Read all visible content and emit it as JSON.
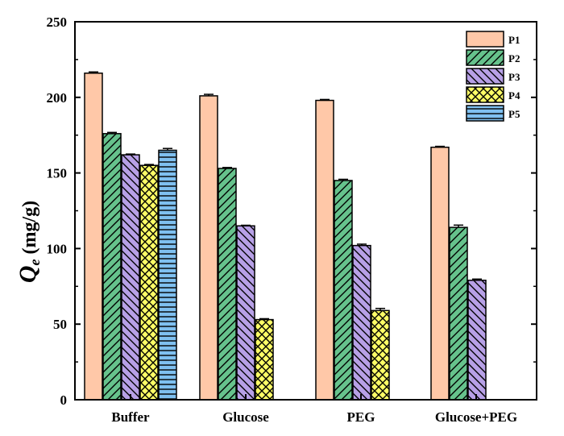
{
  "chart_data": {
    "type": "bar",
    "title": "",
    "xlabel": "",
    "ylabel": {
      "symbol": "Q",
      "subscript": "e",
      "unit": " (mg/g)"
    },
    "ylim": [
      0,
      250
    ],
    "yticks": [
      0,
      50,
      100,
      150,
      200,
      250
    ],
    "categories": [
      "Buffer",
      "Glucose",
      "PEG",
      "Glucose+PEG"
    ],
    "legend_position": "top-right",
    "series": [
      {
        "name": "P1",
        "color": "#FFC8A8",
        "pattern": "solid",
        "values": [
          216,
          201,
          198,
          167
        ],
        "errors": [
          0.8,
          1.0,
          0.6,
          0.6
        ]
      },
      {
        "name": "P2",
        "color": "#66C28C",
        "pattern": "diagonal-right",
        "values": [
          176,
          153,
          145,
          114
        ],
        "errors": [
          0.8,
          0.6,
          0.8,
          1.5
        ]
      },
      {
        "name": "P3",
        "color": "#B7A0E6",
        "pattern": "diagonal-left",
        "values": [
          162,
          115,
          102,
          79
        ],
        "errors": [
          0.5,
          0.4,
          0.9,
          0.8
        ]
      },
      {
        "name": "P4",
        "color": "#FFFF66",
        "pattern": "crosshatch",
        "values": [
          155,
          53,
          59,
          null
        ],
        "errors": [
          0.6,
          0.6,
          1.4,
          null
        ]
      },
      {
        "name": "P5",
        "color": "#7FC0F0",
        "pattern": "horizontal",
        "values": [
          165,
          null,
          null,
          null
        ],
        "errors": [
          1.2,
          null,
          null,
          null
        ]
      }
    ]
  }
}
